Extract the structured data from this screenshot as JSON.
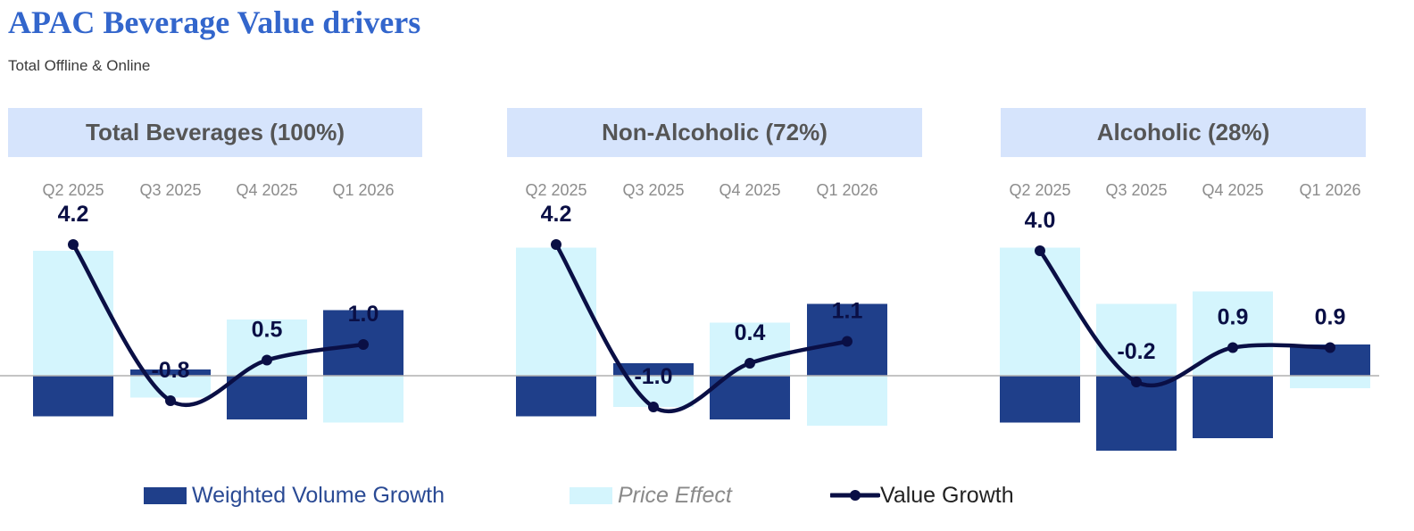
{
  "page": {
    "title": "APAC Beverage Value drivers",
    "subtitle": "Total Offline & Online"
  },
  "colors": {
    "volume": "#1f3f8a",
    "price": "#d4f5fd",
    "value": "#0a0f45",
    "header_bg": "#d6e4fc",
    "title": "#3366cc",
    "axis": "#b0b0b0",
    "tick": "#8c8c8c"
  },
  "legend": [
    {
      "key": "volume",
      "label": "Weighted Volume Growth",
      "color": "#1f3f8a",
      "text_color": "#2a4a94",
      "italic": false
    },
    {
      "key": "price",
      "label": "Price Effect",
      "color": "#d4f5fd",
      "text_color": "#8a8a8a",
      "italic": true
    },
    {
      "key": "value",
      "label": "Value Growth",
      "color": "#0a0f45",
      "text_color": "#222222",
      "italic": false
    }
  ],
  "chart_data": [
    {
      "type": "bar",
      "title": "Total Beverages (100%)",
      "categories": [
        "Q2 2025",
        "Q3 2025",
        "Q4 2025",
        "Q1 2026"
      ],
      "series": [
        {
          "name": "Weighted Volume Growth",
          "values": [
            -1.3,
            0.2,
            -1.4,
            2.1
          ]
        },
        {
          "name": "Price Effect",
          "values": [
            4.0,
            -0.7,
            1.8,
            -1.5
          ]
        },
        {
          "name": "Value Growth",
          "values": [
            4.2,
            -0.8,
            0.5,
            1.0
          ]
        }
      ],
      "data_labels": [
        "4.2",
        "-0.8",
        "0.5",
        "1.0"
      ]
    },
    {
      "type": "bar",
      "title": "Non-Alcoholic (72%)",
      "categories": [
        "Q2 2025",
        "Q3 2025",
        "Q4 2025",
        "Q1 2026"
      ],
      "series": [
        {
          "name": "Weighted Volume Growth",
          "values": [
            -1.3,
            0.4,
            -1.4,
            2.3
          ]
        },
        {
          "name": "Price Effect",
          "values": [
            4.1,
            -1.0,
            1.7,
            -1.6
          ]
        },
        {
          "name": "Value Growth",
          "values": [
            4.2,
            -1.0,
            0.4,
            1.1
          ]
        }
      ],
      "data_labels": [
        "4.2",
        "-1.0",
        "0.4",
        "1.1"
      ]
    },
    {
      "type": "bar",
      "title": "Alcoholic (28%)",
      "categories": [
        "Q2 2025",
        "Q3 2025",
        "Q4 2025",
        "Q1 2026"
      ],
      "series": [
        {
          "name": "Weighted Volume Growth",
          "values": [
            -1.5,
            -2.4,
            -2.0,
            1.0
          ]
        },
        {
          "name": "Price Effect",
          "values": [
            4.1,
            2.3,
            2.7,
            -0.4
          ]
        },
        {
          "name": "Value Growth",
          "values": [
            4.0,
            -0.2,
            0.9,
            0.9
          ]
        }
      ],
      "data_labels": [
        "4.0",
        "-0.2",
        "0.9",
        "0.9"
      ]
    }
  ]
}
